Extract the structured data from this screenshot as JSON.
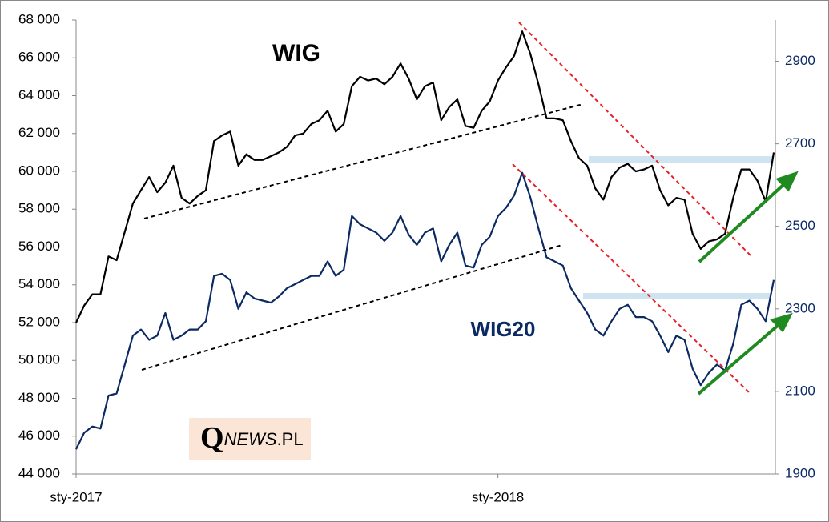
{
  "chart_data": {
    "type": "line",
    "categories": [
      "sty-2017",
      null,
      null,
      null,
      null,
      null,
      null,
      null,
      null,
      null,
      null,
      null,
      null,
      null,
      null,
      null,
      null,
      null,
      null,
      null,
      null,
      null,
      null,
      null,
      null,
      null,
      null,
      null,
      null,
      null,
      null,
      null,
      null,
      null,
      null,
      null,
      null,
      null,
      null,
      null,
      null,
      null,
      null,
      null,
      null,
      null,
      null,
      null,
      null,
      null,
      null,
      null,
      "sty-2018",
      null,
      null,
      null,
      null,
      null,
      null,
      null,
      null,
      null,
      null,
      null,
      null,
      null,
      null,
      null,
      null,
      null,
      null,
      null,
      null,
      null,
      null,
      null,
      null,
      null,
      null,
      null,
      null,
      null,
      null,
      null,
      null,
      null,
      null
    ],
    "series": [
      {
        "name": "WIG",
        "color": "#000000",
        "values": [
          52000,
          52900,
          53500,
          53500,
          55500,
          55300,
          56800,
          58300,
          59000,
          59700,
          58900,
          59400,
          60300,
          58600,
          58300,
          58700,
          59000,
          61600,
          61900,
          62100,
          60300,
          60900,
          60600,
          60600,
          60800,
          61000,
          61300,
          61900,
          62000,
          62500,
          62700,
          63200,
          62100,
          62500,
          64500,
          65000,
          64800,
          64900,
          64600,
          65000,
          65700,
          64900,
          63800,
          64500,
          64700,
          62700,
          63400,
          63800,
          62400,
          62300,
          63200,
          63700,
          64800,
          65500,
          66100,
          67400,
          66200,
          64600,
          62800,
          62800,
          62700,
          61600,
          60700,
          60300,
          59100,
          58500,
          59700,
          60200,
          60400,
          60000,
          60100,
          60300,
          59000,
          58200,
          58600,
          58500,
          56700,
          55900,
          56300,
          56400,
          56700,
          58600,
          60100,
          60100,
          59500,
          58400,
          61000
        ]
      },
      {
        "name": "WIG20",
        "color": "#0b2a63",
        "axis": "y2",
        "values": [
          1960,
          2000,
          2015,
          2010,
          2090,
          2095,
          2165,
          2235,
          2250,
          2225,
          2235,
          2290,
          2225,
          2235,
          2250,
          2250,
          2270,
          2380,
          2385,
          2370,
          2300,
          2340,
          2325,
          2320,
          2315,
          2330,
          2350,
          2360,
          2370,
          2380,
          2380,
          2415,
          2380,
          2395,
          2525,
          2505,
          2495,
          2485,
          2465,
          2485,
          2525,
          2480,
          2455,
          2485,
          2495,
          2415,
          2455,
          2485,
          2405,
          2400,
          2455,
          2475,
          2525,
          2545,
          2575,
          2630,
          2570,
          2495,
          2425,
          2415,
          2405,
          2350,
          2320,
          2290,
          2250,
          2235,
          2270,
          2300,
          2310,
          2280,
          2280,
          2270,
          2235,
          2195,
          2235,
          2225,
          2155,
          2115,
          2145,
          2165,
          2150,
          2215,
          2310,
          2320,
          2300,
          2270,
          2370
        ]
      }
    ],
    "ylim": [
      44000,
      68000
    ],
    "yticks": [
      {
        "value": 44000,
        "label": "44 000"
      },
      {
        "value": 46000,
        "label": "46 000"
      },
      {
        "value": 48000,
        "label": "48 000"
      },
      {
        "value": 50000,
        "label": "50 000"
      },
      {
        "value": 52000,
        "label": "52 000"
      },
      {
        "value": 54000,
        "label": "54 000"
      },
      {
        "value": 56000,
        "label": "56 000"
      },
      {
        "value": 58000,
        "label": "58 000"
      },
      {
        "value": 60000,
        "label": "60 000"
      },
      {
        "value": 62000,
        "label": "62 000"
      },
      {
        "value": 64000,
        "label": "64 000"
      },
      {
        "value": 66000,
        "label": "66 000"
      },
      {
        "value": 68000,
        "label": "68 000"
      }
    ],
    "y2lim": [
      1900,
      3000
    ],
    "y2ticks": [
      1900,
      2100,
      2300,
      2500,
      2700,
      2900
    ],
    "watermark": [
      "Q",
      "NEWS",
      ".PL"
    ]
  }
}
